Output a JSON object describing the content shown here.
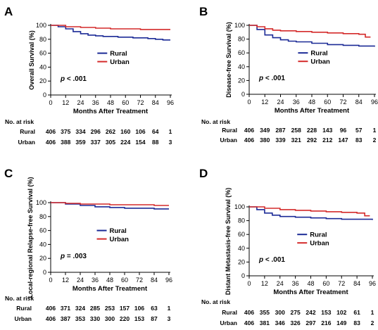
{
  "panels": [
    {
      "letter": "A",
      "chart_data": {
        "type": "line",
        "title": "",
        "xlabel": "Months After Treatment",
        "ylabel": "Overall Survival (%)",
        "xlim": [
          0,
          96
        ],
        "ylim": [
          0,
          100
        ],
        "xticks": [
          0,
          12,
          24,
          36,
          48,
          60,
          72,
          84,
          96
        ],
        "yticks": [
          0,
          20,
          40,
          60,
          80,
          100
        ],
        "grid": false,
        "legend_position": "center-right",
        "annotation": {
          "prefix": "p",
          "text": " < .001"
        },
        "series": [
          {
            "name": "Rural",
            "color": "#1b2a96",
            "x": [
              0,
              6,
              12,
              18,
              24,
              30,
              36,
              42,
              48,
              54,
              60,
              66,
              72,
              78,
              84,
              90,
              96
            ],
            "y": [
              100,
              98,
              95,
              91,
              88,
              86,
              85,
              84,
              84,
              83,
              83,
              82,
              82,
              81,
              80,
              79,
              79
            ]
          },
          {
            "name": "Urban",
            "color": "#d42a2a",
            "x": [
              0,
              12,
              24,
              36,
              48,
              60,
              72,
              84,
              96
            ],
            "y": [
              100,
              98,
              97,
              96,
              95,
              95,
              94,
              94,
              94
            ]
          }
        ]
      },
      "risk_table": {
        "title": "No. at risk",
        "rows": [
          {
            "label": "Rural",
            "values": [
              "406",
              "375",
              "334",
              "296",
              "262",
              "160",
              "106",
              "64",
              "1"
            ]
          },
          {
            "label": "Urban",
            "values": [
              "406",
              "388",
              "359",
              "337",
              "305",
              "224",
              "154",
              "88",
              "3"
            ]
          }
        ]
      }
    },
    {
      "letter": "B",
      "chart_data": {
        "type": "line",
        "title": "",
        "xlabel": "Months After Treatment",
        "ylabel": "Disease-free Survival (%)",
        "xlim": [
          0,
          96
        ],
        "ylim": [
          0,
          100
        ],
        "xticks": [
          0,
          12,
          24,
          36,
          48,
          60,
          72,
          84,
          96
        ],
        "yticks": [
          0,
          20,
          40,
          60,
          80,
          100
        ],
        "grid": false,
        "legend_position": "center-right",
        "annotation": {
          "prefix": "p",
          "text": " < .001"
        },
        "series": [
          {
            "name": "Rural",
            "color": "#1b2a96",
            "x": [
              0,
              6,
              12,
              18,
              24,
              30,
              36,
              48,
              60,
              72,
              84,
              96
            ],
            "y": [
              100,
              94,
              86,
              82,
              79,
              77,
              76,
              74,
              72,
              71,
              70,
              69
            ]
          },
          {
            "name": "Urban",
            "color": "#d42a2a",
            "x": [
              0,
              6,
              12,
              18,
              24,
              36,
              48,
              60,
              72,
              84,
              89,
              89,
              93
            ],
            "y": [
              100,
              98,
              95,
              93,
              92,
              91,
              90,
              89,
              88,
              87,
              86,
              83,
              83
            ]
          }
        ]
      },
      "risk_table": {
        "title": "No. at risk",
        "rows": [
          {
            "label": "Rural",
            "values": [
              "406",
              "349",
              "287",
              "258",
              "228",
              "143",
              "96",
              "57",
              "1"
            ]
          },
          {
            "label": "Urban",
            "values": [
              "406",
              "380",
              "339",
              "321",
              "292",
              "212",
              "147",
              "83",
              "2"
            ]
          }
        ]
      }
    },
    {
      "letter": "C",
      "chart_data": {
        "type": "line",
        "title": "",
        "xlabel": "Months After Treatment",
        "ylabel": "Local-regional Relapse-free Survival (%)",
        "xlim": [
          0,
          96
        ],
        "ylim": [
          0,
          100
        ],
        "xticks": [
          0,
          12,
          24,
          36,
          48,
          60,
          72,
          84,
          96
        ],
        "yticks": [
          0,
          20,
          40,
          60,
          80,
          100
        ],
        "grid": false,
        "legend_position": "center-right",
        "annotation": {
          "prefix": "p",
          "text": " = .003"
        },
        "series": [
          {
            "name": "Rural",
            "color": "#1b2a96",
            "x": [
              0,
              12,
              24,
              36,
              48,
              60,
              72,
              84,
              96
            ],
            "y": [
              100,
              98,
              96,
              94,
              93,
              92,
              92,
              91,
              91
            ]
          },
          {
            "name": "Urban",
            "color": "#d42a2a",
            "x": [
              0,
              12,
              24,
              36,
              48,
              60,
              72,
              84,
              96
            ],
            "y": [
              100,
              99,
              98,
              98,
              97,
              97,
              97,
              96,
              96
            ]
          }
        ]
      },
      "risk_table": {
        "title": "No. at risk",
        "rows": [
          {
            "label": "Rural",
            "values": [
              "406",
              "371",
              "324",
              "285",
              "253",
              "157",
              "106",
              "63",
              "1"
            ]
          },
          {
            "label": "Urban",
            "values": [
              "406",
              "387",
              "353",
              "330",
              "300",
              "220",
              "153",
              "87",
              "3"
            ]
          }
        ]
      }
    },
    {
      "letter": "D",
      "chart_data": {
        "type": "line",
        "title": "",
        "xlabel": "Months After Treatment",
        "ylabel": "Distant Metastasis-free Survival (%)",
        "xlim": [
          0,
          96
        ],
        "ylim": [
          0,
          100
        ],
        "xticks": [
          0,
          12,
          24,
          36,
          48,
          60,
          72,
          84,
          96
        ],
        "yticks": [
          0,
          20,
          40,
          60,
          80,
          100
        ],
        "grid": false,
        "legend_position": "center-right",
        "annotation": {
          "prefix": "p",
          "text": " < .001"
        },
        "series": [
          {
            "name": "Rural",
            "color": "#1b2a96",
            "x": [
              0,
              6,
              12,
              18,
              24,
              36,
              48,
              60,
              72,
              84,
              96
            ],
            "y": [
              100,
              96,
              91,
              88,
              86,
              85,
              84,
              83,
              82,
              82,
              81
            ]
          },
          {
            "name": "Urban",
            "color": "#d42a2a",
            "x": [
              0,
              12,
              24,
              36,
              48,
              60,
              72,
              84,
              90,
              90,
              94
            ],
            "y": [
              100,
              98,
              96,
              95,
              94,
              93,
              92,
              91,
              90,
              87,
              87
            ]
          }
        ]
      },
      "risk_table": {
        "title": "No. at risk",
        "rows": [
          {
            "label": "Rural",
            "values": [
              "406",
              "355",
              "300",
              "275",
              "242",
              "153",
              "102",
              "61",
              "1"
            ]
          },
          {
            "label": "Urban",
            "values": [
              "406",
              "381",
              "346",
              "326",
              "297",
              "216",
              "149",
              "83",
              "2"
            ]
          }
        ]
      }
    }
  ]
}
